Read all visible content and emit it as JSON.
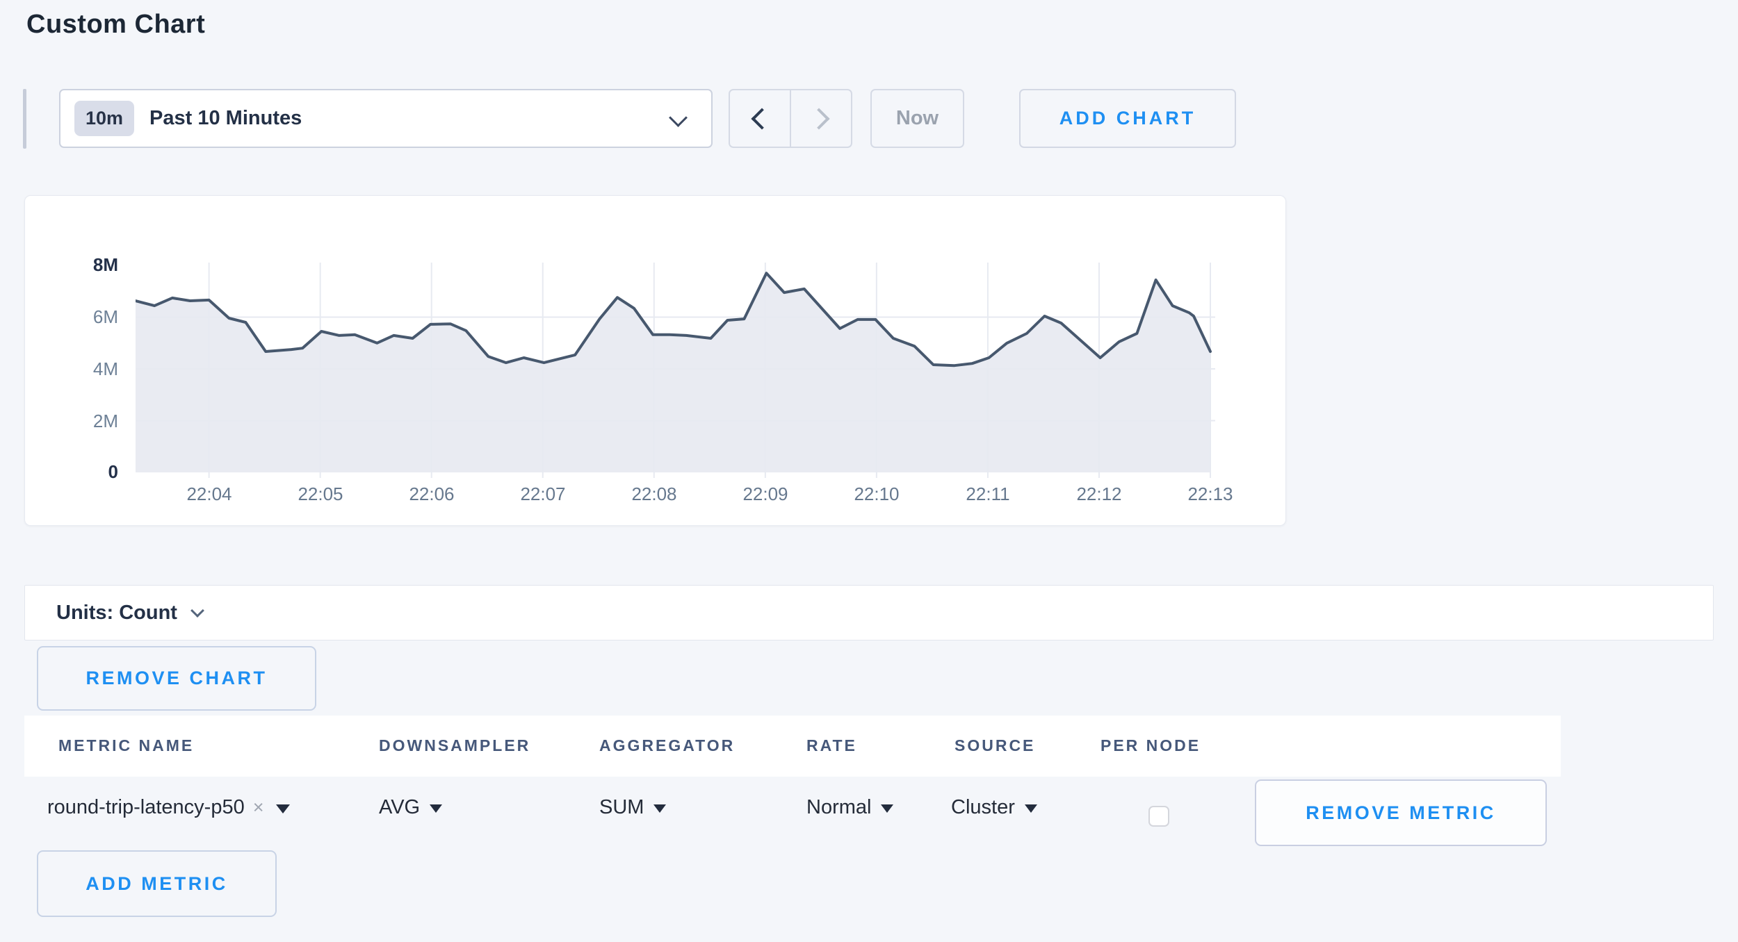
{
  "page": {
    "title": "Custom Chart"
  },
  "toolbar": {
    "range_badge": "10m",
    "range_label": "Past 10 Minutes",
    "now_label": "Now",
    "add_chart_label": "ADD CHART"
  },
  "chart_data": {
    "type": "area",
    "title": "",
    "xlabel": "",
    "ylabel": "",
    "unit": "Count (millions)",
    "xlim": [
      3.34,
      13.0
    ],
    "ylim": [
      0,
      8
    ],
    "x_tick_minutes": [
      4,
      5,
      6,
      7,
      8,
      9,
      10,
      11,
      12,
      13
    ],
    "x_tick_labels": [
      "22:04",
      "22:05",
      "22:06",
      "22:07",
      "22:08",
      "22:09",
      "22:10",
      "22:11",
      "22:12",
      "22:13"
    ],
    "y_tick_values": [
      8,
      6,
      4,
      2,
      0
    ],
    "y_tick_labels": [
      "8M",
      "6M",
      "4M",
      "2M",
      "0"
    ],
    "grid_y_values": [
      6,
      4,
      2
    ],
    "grid": true,
    "legend": "none",
    "line_color": "#47586e",
    "fill_color": "#e9ebf2",
    "grid_color": "#e7eaf1",
    "points": [
      [
        3.34,
        6.63
      ],
      [
        3.51,
        6.44
      ],
      [
        3.67,
        6.74
      ],
      [
        3.83,
        6.63
      ],
      [
        4.0,
        6.66
      ],
      [
        4.18,
        5.96
      ],
      [
        4.33,
        5.8
      ],
      [
        4.51,
        4.67
      ],
      [
        4.74,
        4.75
      ],
      [
        4.84,
        4.8
      ],
      [
        5.01,
        5.45
      ],
      [
        5.17,
        5.29
      ],
      [
        5.31,
        5.32
      ],
      [
        5.51,
        5.0
      ],
      [
        5.66,
        5.29
      ],
      [
        5.83,
        5.18
      ],
      [
        5.99,
        5.72
      ],
      [
        6.17,
        5.74
      ],
      [
        6.31,
        5.48
      ],
      [
        6.51,
        4.48
      ],
      [
        6.67,
        4.24
      ],
      [
        6.83,
        4.43
      ],
      [
        7.01,
        4.24
      ],
      [
        7.29,
        4.54
      ],
      [
        7.51,
        5.93
      ],
      [
        7.67,
        6.76
      ],
      [
        7.82,
        6.34
      ],
      [
        7.99,
        5.32
      ],
      [
        8.14,
        5.32
      ],
      [
        8.29,
        5.29
      ],
      [
        8.51,
        5.18
      ],
      [
        8.66,
        5.88
      ],
      [
        8.81,
        5.93
      ],
      [
        9.01,
        7.7
      ],
      [
        9.17,
        6.95
      ],
      [
        9.35,
        7.09
      ],
      [
        9.67,
        5.56
      ],
      [
        9.83,
        5.91
      ],
      [
        9.99,
        5.91
      ],
      [
        10.15,
        5.18
      ],
      [
        10.34,
        4.88
      ],
      [
        10.51,
        4.16
      ],
      [
        10.7,
        4.13
      ],
      [
        10.86,
        4.21
      ],
      [
        11.01,
        4.43
      ],
      [
        11.17,
        4.99
      ],
      [
        11.35,
        5.37
      ],
      [
        11.51,
        6.04
      ],
      [
        11.66,
        5.77
      ],
      [
        12.01,
        4.43
      ],
      [
        12.18,
        5.05
      ],
      [
        12.34,
        5.37
      ],
      [
        12.51,
        7.44
      ],
      [
        12.66,
        6.44
      ],
      [
        12.81,
        6.17
      ],
      [
        12.85,
        6.04
      ],
      [
        13.0,
        4.67
      ]
    ]
  },
  "units_bar": {
    "label": "Units: Count"
  },
  "chart_actions": {
    "remove_chart_label": "REMOVE CHART",
    "add_metric_label": "ADD METRIC"
  },
  "table": {
    "columns": [
      "METRIC NAME",
      "DOWNSAMPLER",
      "AGGREGATOR",
      "RATE",
      "SOURCE",
      "PER NODE"
    ],
    "row": {
      "metric_name": "round-trip-latency-p50",
      "remove_tag": "×",
      "downsampler": "AVG",
      "aggregator": "SUM",
      "rate": "Normal",
      "source": "Cluster",
      "per_node_checked": false,
      "remove_metric_label": "REMOVE METRIC"
    }
  },
  "colors": {
    "accent_blue": "#1e8ff2",
    "page_bg": "#f4f6fa",
    "line": "#47586e",
    "area_fill": "#e9ebf2"
  }
}
